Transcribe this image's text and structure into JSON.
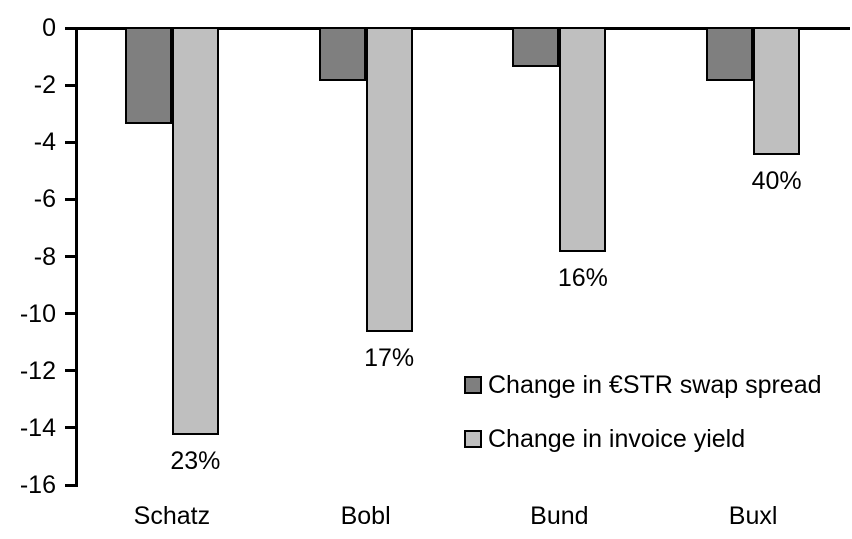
{
  "chart_data": {
    "type": "bar",
    "title": "",
    "orientation": "vertical",
    "categories": [
      "Schatz",
      "Bobl",
      "Bund",
      "Buxl"
    ],
    "series": [
      {
        "name": "Change in €STR swap spread",
        "color": "#7f7f7f",
        "values": [
          -3.3,
          -1.8,
          -1.3,
          -1.8
        ]
      },
      {
        "name": "Change in invoice yield",
        "color": "#bfbfbf",
        "values": [
          -14.2,
          -10.6,
          -7.8,
          -4.4
        ],
        "point_labels": [
          "23%",
          "17%",
          "16%",
          "40%"
        ]
      }
    ],
    "ylim": [
      -16,
      0
    ],
    "yticks": [
      0,
      -2,
      -4,
      -6,
      -8,
      -10,
      -12,
      -14,
      -16
    ],
    "xlabel": "",
    "ylabel": "",
    "grid": false,
    "legend_position": "inside-right",
    "bar_outline_color": "#000000",
    "axis_color": "#000000",
    "text_color": "#000000",
    "background_color": "#ffffff"
  }
}
